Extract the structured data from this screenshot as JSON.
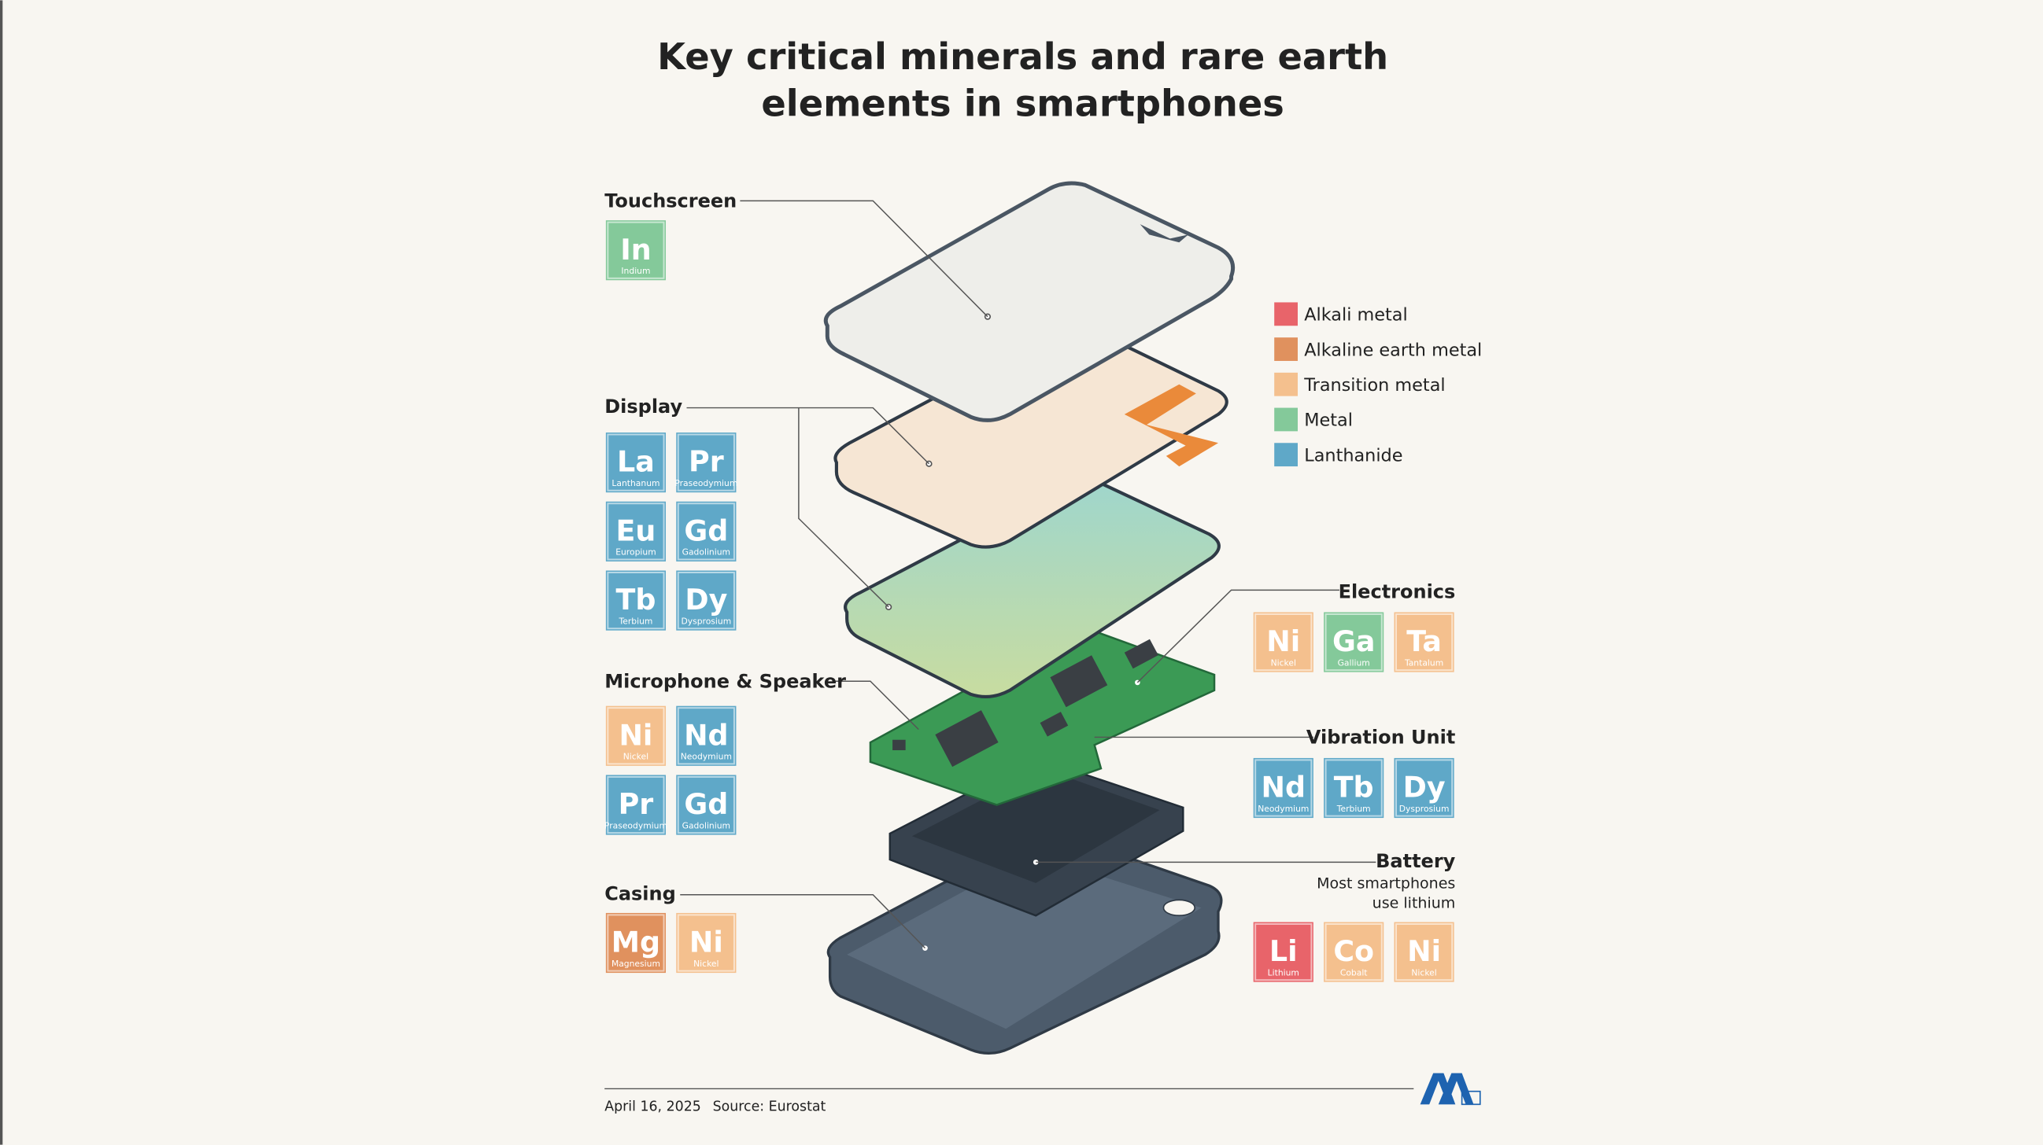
{
  "title_lines": [
    "Key critical minerals and rare earth",
    "elements in smartphones"
  ],
  "legend": [
    {
      "name": "Alkali metal",
      "color": "#e8646a"
    },
    {
      "name": "Alkaline earth metal",
      "color": "#e0915e"
    },
    {
      "name": "Transition metal",
      "color": "#f4c08e"
    },
    {
      "name": "Metal",
      "color": "#84c99a"
    },
    {
      "name": "Lanthanide",
      "color": "#5fa8c8"
    }
  ],
  "sections": [
    {
      "label": "Touchscreen",
      "elements": [
        {
          "symbol": "In",
          "name": "Indium",
          "color": "#84c99a"
        }
      ]
    },
    {
      "label": "Display",
      "elements": [
        {
          "symbol": "La",
          "name": "Lanthanum",
          "color": "#5fa8c8"
        },
        {
          "symbol": "Pr",
          "name": "Praseodymium",
          "color": "#5fa8c8"
        },
        {
          "symbol": "Eu",
          "name": "Europium",
          "color": "#5fa8c8"
        },
        {
          "symbol": "Gd",
          "name": "Gadolinium",
          "color": "#5fa8c8"
        },
        {
          "symbol": "Tb",
          "name": "Terbium",
          "color": "#5fa8c8"
        },
        {
          "symbol": "Dy",
          "name": "Dysprosium",
          "color": "#5fa8c8"
        }
      ]
    },
    {
      "label": "Microphone & Speaker",
      "elements": [
        {
          "symbol": "Ni",
          "name": "Nickel",
          "color": "#f4c08e"
        },
        {
          "symbol": "Nd",
          "name": "Neodymium",
          "color": "#5fa8c8"
        },
        {
          "symbol": "Pr",
          "name": "Praseodymium",
          "color": "#5fa8c8"
        },
        {
          "symbol": "Gd",
          "name": "Gadolinium",
          "color": "#5fa8c8"
        }
      ]
    },
    {
      "label": "Casing",
      "elements": [
        {
          "symbol": "Mg",
          "name": "Magnesium",
          "color": "#e0915e"
        },
        {
          "symbol": "Ni",
          "name": "Nickel",
          "color": "#f4c08e"
        }
      ]
    },
    {
      "label": "Electronics",
      "elements": [
        {
          "symbol": "Ni",
          "name": "Nickel",
          "color": "#f4c08e"
        },
        {
          "symbol": "Ga",
          "name": "Gallium",
          "color": "#84c99a"
        },
        {
          "symbol": "Ta",
          "name": "Tantalum",
          "color": "#f4c08e"
        }
      ]
    },
    {
      "label": "Vibration Unit",
      "elements": [
        {
          "symbol": "Nd",
          "name": "Neodymium",
          "color": "#5fa8c8"
        },
        {
          "symbol": "Tb",
          "name": "Terbium",
          "color": "#5fa8c8"
        },
        {
          "symbol": "Dy",
          "name": "Dysprosium",
          "color": "#5fa8c8"
        }
      ]
    },
    {
      "label": "Battery",
      "note_lines": [
        "Most smartphones",
        "use lithium"
      ],
      "elements": [
        {
          "symbol": "Li",
          "name": "Lithium",
          "color": "#e8646a"
        },
        {
          "symbol": "Co",
          "name": "Cobalt",
          "color": "#f4c08e"
        },
        {
          "symbol": "Ni",
          "name": "Nickel",
          "color": "#f4c08e"
        }
      ]
    }
  ],
  "footer": {
    "date": "April 16, 2025",
    "source": "Source: Eurostat"
  }
}
